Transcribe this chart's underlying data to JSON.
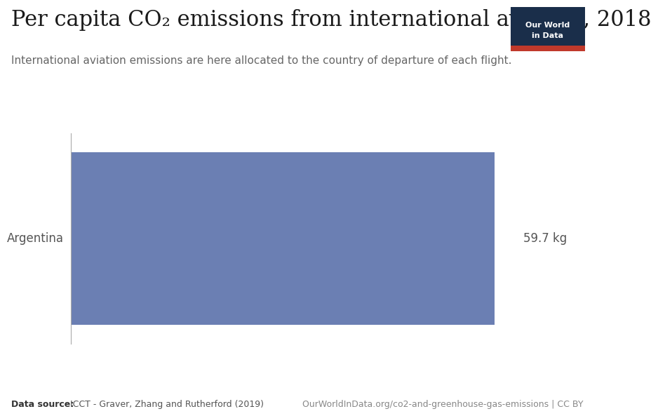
{
  "title": "Per capita CO₂ emissions from international aviation, 2018",
  "subtitle": "International aviation emissions are here allocated to the country of departure of each flight.",
  "category": "Argentina",
  "value": 59.7,
  "value_label": "59.7 kg",
  "bar_color": "#6b7fb3",
  "background_color": "#ffffff",
  "title_fontsize": 22,
  "subtitle_fontsize": 11,
  "label_fontsize": 12,
  "datasource_bold": "Data source:",
  "datasource_rest": " ICCT - Graver, Zhang and Rutherford (2019)",
  "url_text": "OurWorldInData.org/co2-and-greenhouse-gas-emissions | CC BY",
  "owid_box_color": "#1a2e4a",
  "owid_red_color": "#c0392b",
  "owid_text_line1": "Our World",
  "owid_text_line2": "in Data"
}
